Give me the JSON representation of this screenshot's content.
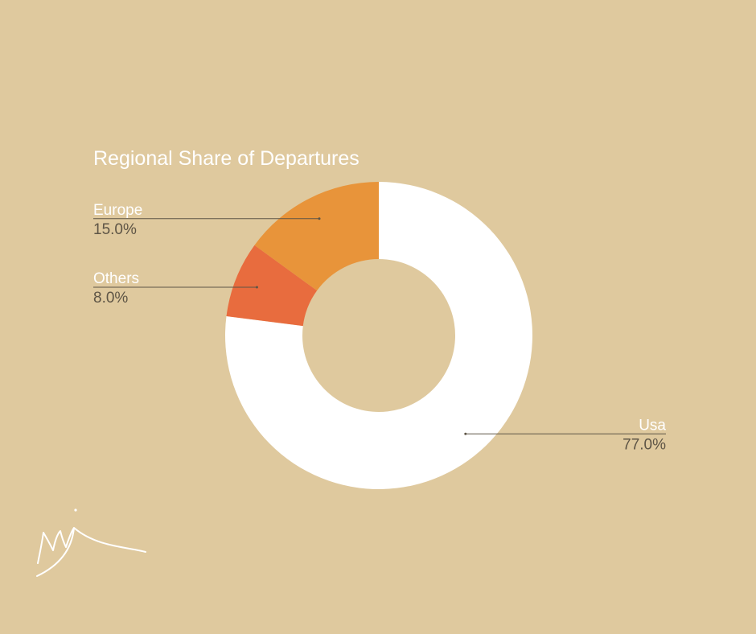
{
  "colors": {
    "background": "#dfc99e",
    "Usa": "#ffffff",
    "Europe": "#e8943a",
    "Others": "#e86c3e"
  },
  "logo": {
    "text": "wj",
    "style": "handwritten signature"
  },
  "chart_data": {
    "type": "pie",
    "variant": "donut",
    "title": "Regional Share of Departures",
    "slices": [
      {
        "label": "Usa",
        "value": 77.0,
        "display": "77.0%"
      },
      {
        "label": "Others",
        "value": 8.0,
        "display": "8.0%"
      },
      {
        "label": "Europe",
        "value": 15.0,
        "display": "15.0%"
      }
    ],
    "start_angle_deg": 0,
    "direction": "clockwise",
    "labels": "outside with leader lines"
  }
}
